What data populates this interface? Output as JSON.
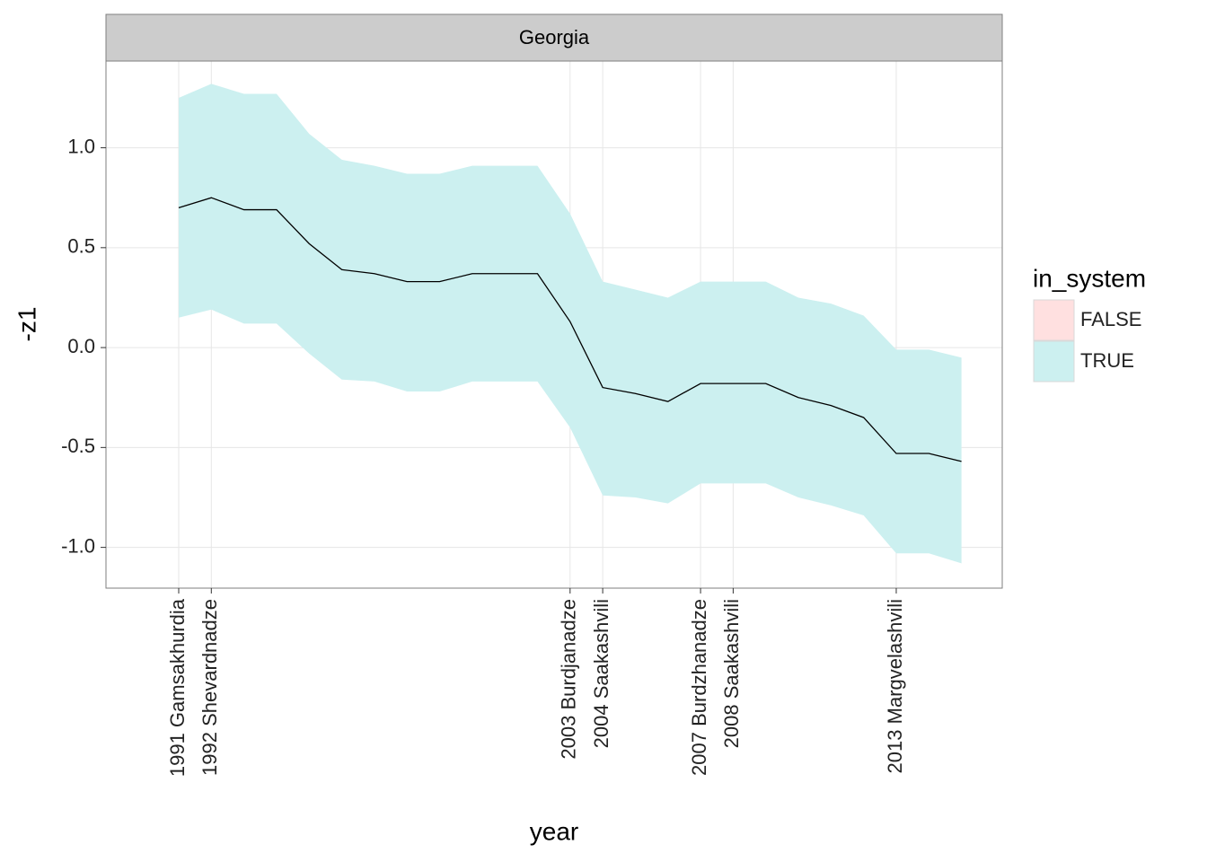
{
  "chart_data": {
    "type": "line",
    "strip_title": "Georgia",
    "x_label": "year",
    "y_label": "-z1",
    "x": [
      1991,
      1992,
      1993,
      1994,
      1995,
      1996,
      1997,
      1998,
      1999,
      2000,
      2001,
      2002,
      2003,
      2004,
      2005,
      2006,
      2007,
      2008,
      2009,
      2010,
      2011,
      2012,
      2013,
      2014,
      2015
    ],
    "values": [
      0.7,
      0.75,
      0.69,
      0.69,
      0.52,
      0.39,
      0.37,
      0.33,
      0.33,
      0.37,
      0.37,
      0.37,
      0.13,
      -0.2,
      -0.23,
      -0.27,
      -0.18,
      -0.18,
      -0.18,
      -0.25,
      -0.29,
      -0.35,
      -0.53,
      -0.53,
      -0.57
    ],
    "lower": [
      0.15,
      0.19,
      0.12,
      0.12,
      -0.03,
      -0.16,
      -0.17,
      -0.22,
      -0.22,
      -0.17,
      -0.17,
      -0.17,
      -0.4,
      -0.74,
      -0.75,
      -0.78,
      -0.68,
      -0.68,
      -0.68,
      -0.75,
      -0.79,
      -0.84,
      -1.03,
      -1.03,
      -1.08
    ],
    "upper": [
      1.25,
      1.32,
      1.27,
      1.27,
      1.07,
      0.94,
      0.91,
      0.87,
      0.87,
      0.91,
      0.91,
      0.91,
      0.67,
      0.33,
      0.29,
      0.25,
      0.33,
      0.33,
      0.33,
      0.25,
      0.22,
      0.16,
      -0.01,
      -0.01,
      -0.05
    ],
    "line_color": "#000000",
    "ribbon_color": "#ccf0f0",
    "xlim": [
      1988.77,
      2016.25
    ],
    "ylim": [
      -1.204,
      1.434
    ],
    "xticks": [
      {
        "value": 1991,
        "label": "1991 Gamsakhurdia"
      },
      {
        "value": 1992,
        "label": "1992 Shevardnadze"
      },
      {
        "value": 2003,
        "label": "2003 Burdjanadze"
      },
      {
        "value": 2004,
        "label": "2004 Saakashvili"
      },
      {
        "value": 2007,
        "label": "2007 Burdzhanadze"
      },
      {
        "value": 2008,
        "label": "2008 Saakashvili"
      },
      {
        "value": 2013,
        "label": "2013 Margvelashvili"
      }
    ],
    "yticks": [
      {
        "value": -1,
        "label": "-1.0"
      },
      -0.5,
      {
        "value": 0,
        "label": "0.0"
      },
      0.5,
      {
        "value": 1,
        "label": "1.0"
      }
    ],
    "grid": true,
    "legend": {
      "title": "in_system",
      "position": "right",
      "entries": [
        {
          "name": "FALSE",
          "color": "#ffe0e0"
        },
        {
          "name": "TRUE",
          "color": "#ccf0f0"
        }
      ]
    }
  }
}
